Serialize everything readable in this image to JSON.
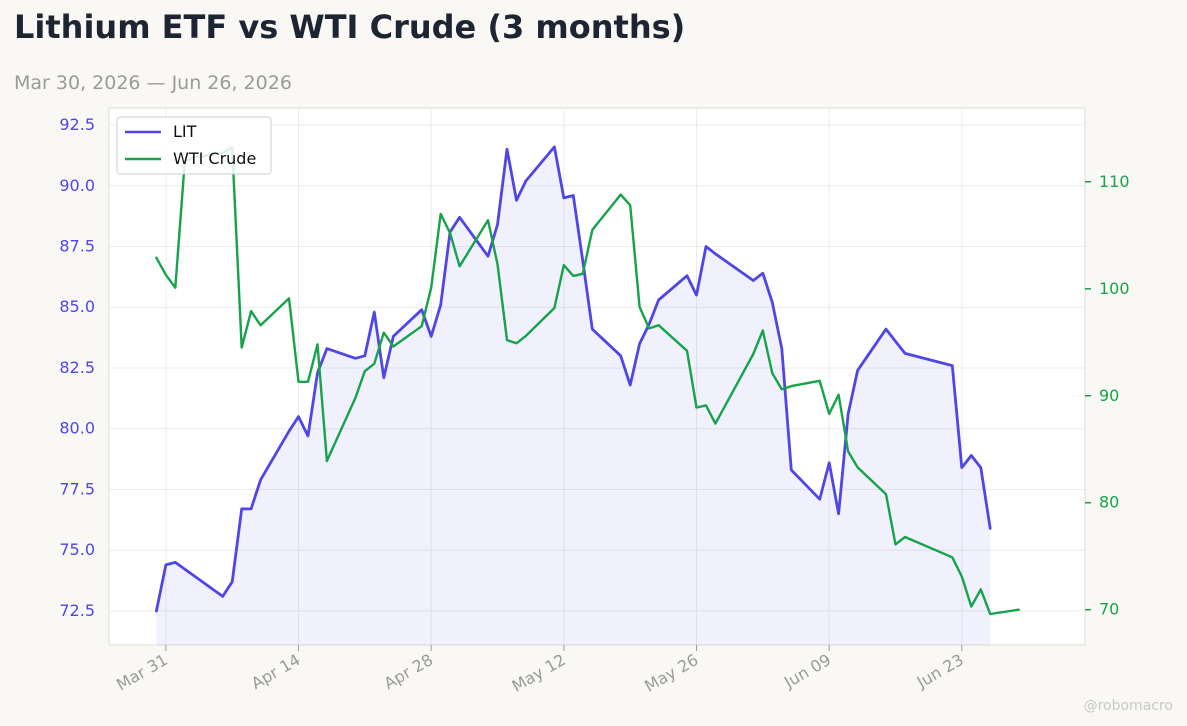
{
  "header": {
    "title": "Lithium ETF vs WTI Crude (3 months)",
    "subtitle": "Mar 30, 2026 — Jun 26, 2026"
  },
  "watermark": "@robomacro",
  "chart_data": {
    "type": "line",
    "title": "Lithium ETF vs WTI Crude (3 months)",
    "subtitle": "Mar 30, 2026 — Jun 26, 2026",
    "xlabel": "",
    "ylabel_left": "",
    "ylabel_right": "",
    "x_ticks": [
      "2026-03-31",
      "2026-04-14",
      "2026-04-28",
      "2026-05-12",
      "2026-05-26",
      "2026-06-09",
      "2026-06-23"
    ],
    "x_tick_labels": [
      "Mar 31",
      "Apr 14",
      "Apr 28",
      "May 12",
      "May 26",
      "Jun 09",
      "Jun 23"
    ],
    "xlim": [
      "2026-03-25",
      "2026-07-06"
    ],
    "y_left": {
      "ticks": [
        72.5,
        75.0,
        77.5,
        80.0,
        82.5,
        85.0,
        87.5,
        90.0,
        92.5
      ],
      "tick_labels": [
        "72.5",
        "75.0",
        "77.5",
        "80.0",
        "82.5",
        "85.0",
        "87.5",
        "90.0",
        "92.5"
      ],
      "lim": [
        71.1,
        93.2
      ]
    },
    "y_right": {
      "ticks": [
        70,
        80,
        90,
        100,
        110
      ],
      "tick_labels": [
        "70",
        "80",
        "90",
        "100",
        "110"
      ],
      "lim": [
        66.7,
        116.9
      ]
    },
    "grid": true,
    "legend": "top-left",
    "series": [
      {
        "name": "LIT",
        "axis": "left",
        "color": "#4f46e5",
        "fill": true,
        "x": [
          "2026-03-30",
          "2026-03-31",
          "2026-04-01",
          "2026-04-06",
          "2026-04-07",
          "2026-04-08",
          "2026-04-09",
          "2026-04-10",
          "2026-04-13",
          "2026-04-14",
          "2026-04-15",
          "2026-04-16",
          "2026-04-17",
          "2026-04-20",
          "2026-04-21",
          "2026-04-22",
          "2026-04-23",
          "2026-04-24",
          "2026-04-27",
          "2026-04-28",
          "2026-04-29",
          "2026-04-30",
          "2026-05-01",
          "2026-05-04",
          "2026-05-05",
          "2026-05-06",
          "2026-05-07",
          "2026-05-08",
          "2026-05-11",
          "2026-05-12",
          "2026-05-13",
          "2026-05-14",
          "2026-05-15",
          "2026-05-18",
          "2026-05-19",
          "2026-05-20",
          "2026-05-21",
          "2026-05-22",
          "2026-05-25",
          "2026-05-26",
          "2026-05-27",
          "2026-05-28",
          "2026-06-01",
          "2026-06-02",
          "2026-06-03",
          "2026-06-04",
          "2026-06-05",
          "2026-06-08",
          "2026-06-09",
          "2026-06-10",
          "2026-06-11",
          "2026-06-12",
          "2026-06-15",
          "2026-06-16",
          "2026-06-17",
          "2026-06-22",
          "2026-06-23",
          "2026-06-24",
          "2026-06-25",
          "2026-06-26"
        ],
        "values": [
          72.5,
          74.4,
          74.5,
          73.1,
          73.7,
          76.7,
          76.7,
          77.9,
          79.9,
          80.5,
          79.7,
          82.3,
          83.3,
          82.9,
          83.0,
          84.8,
          82.1,
          83.8,
          84.9,
          83.8,
          85.1,
          88.1,
          88.7,
          87.1,
          88.4,
          91.5,
          89.4,
          90.2,
          91.6,
          89.5,
          89.6,
          86.9,
          84.1,
          83.0,
          81.8,
          83.5,
          84.3,
          85.3,
          86.3,
          85.5,
          87.5,
          87.2,
          86.1,
          86.4,
          85.2,
          83.3,
          78.3,
          77.1,
          78.6,
          76.5,
          80.6,
          82.4,
          84.1,
          83.6,
          83.1,
          82.6,
          78.4,
          78.9,
          78.4,
          75.9
        ]
      },
      {
        "name": "WTI Crude",
        "axis": "right",
        "color": "#16a34a",
        "fill": false,
        "x": [
          "2026-03-30",
          "2026-03-31",
          "2026-04-01",
          "2026-04-02",
          "2026-04-03",
          "2026-04-06",
          "2026-04-07",
          "2026-04-08",
          "2026-04-09",
          "2026-04-10",
          "2026-04-13",
          "2026-04-14",
          "2026-04-15",
          "2026-04-16",
          "2026-04-17",
          "2026-04-20",
          "2026-04-21",
          "2026-04-22",
          "2026-04-23",
          "2026-04-24",
          "2026-04-27",
          "2026-04-28",
          "2026-04-29",
          "2026-04-30",
          "2026-05-01",
          "2026-05-04",
          "2026-05-05",
          "2026-05-06",
          "2026-05-07",
          "2026-05-08",
          "2026-05-11",
          "2026-05-12",
          "2026-05-13",
          "2026-05-14",
          "2026-05-15",
          "2026-05-18",
          "2026-05-19",
          "2026-05-20",
          "2026-05-21",
          "2026-05-22",
          "2026-05-25",
          "2026-05-26",
          "2026-05-27",
          "2026-05-28",
          "2026-06-01",
          "2026-06-02",
          "2026-06-03",
          "2026-06-04",
          "2026-06-05",
          "2026-06-08",
          "2026-06-09",
          "2026-06-10",
          "2026-06-11",
          "2026-06-12",
          "2026-06-15",
          "2026-06-16",
          "2026-06-17",
          "2026-06-22",
          "2026-06-23",
          "2026-06-24",
          "2026-06-25",
          "2026-06-26",
          "2026-06-29"
        ],
        "values": [
          102.9,
          101.3,
          100.1,
          111.9,
          112.3,
          112.7,
          113.2,
          94.5,
          97.9,
          96.6,
          99.1,
          91.3,
          91.3,
          94.8,
          83.9,
          89.8,
          92.3,
          93.0,
          95.9,
          94.6,
          96.5,
          100.1,
          107.0,
          105.2,
          102.1,
          106.4,
          102.3,
          95.2,
          94.9,
          95.6,
          98.2,
          102.2,
          101.2,
          101.4,
          105.5,
          108.8,
          107.8,
          98.3,
          96.3,
          96.6,
          94.2,
          88.9,
          89.1,
          87.4,
          93.9,
          96.1,
          92.1,
          90.6,
          90.9,
          91.4,
          88.3,
          90.1,
          84.8,
          83.3,
          80.8,
          76.1,
          76.8,
          74.9,
          73.1,
          70.3,
          71.9,
          69.6,
          70.0
        ]
      }
    ]
  }
}
